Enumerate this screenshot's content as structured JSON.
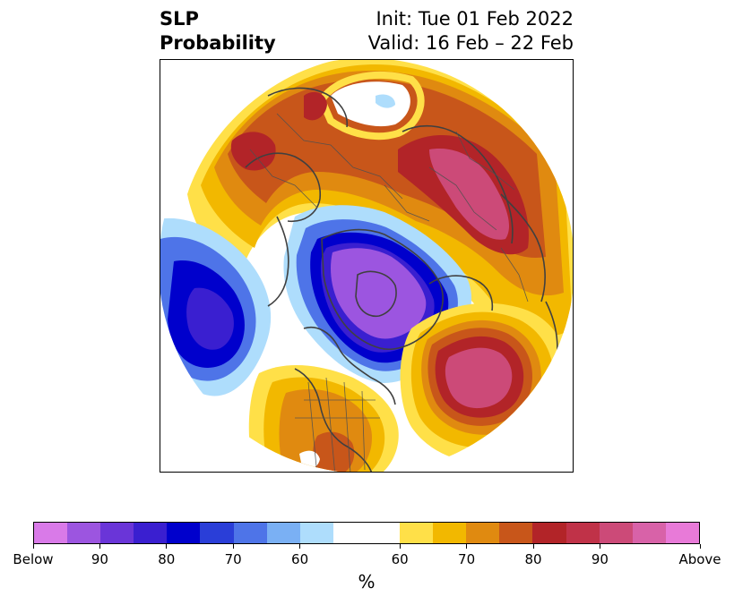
{
  "title": {
    "left_line1": "SLP",
    "left_line2": "Probability",
    "right_line1": "Init: Tue 01 Feb 2022",
    "right_line2": "Valid: 16 Feb – 22 Feb"
  },
  "colorbar": {
    "unit": "%",
    "labels": [
      "Below",
      "90",
      "80",
      "70",
      "60",
      "60",
      "70",
      "80",
      "90",
      "Above"
    ],
    "below_colors": [
      "#d97ae8",
      "#9c55e0",
      "#6a35d8",
      "#3a1fd0",
      "#0000cc",
      "#2a3ed8",
      "#4e74e8",
      "#7ab0f4",
      "#aeddfc"
    ],
    "above_colors": [
      "#ffe048",
      "#f2b800",
      "#e08a10",
      "#c8561a",
      "#b22428",
      "#c03248",
      "#cc4a78",
      "#d862a8",
      "#e87ad8"
    ]
  },
  "map": {
    "projection": "north-polar-stereographic",
    "colors": {
      "blue_light": "#aeddfc",
      "blue_mid": "#4e74e8",
      "blue_deep": "#0000cc",
      "purple": "#9c55e0",
      "yellow": "#ffe048",
      "gold": "#f2b800",
      "orange": "#e08a10",
      "dark_orange": "#c8561a",
      "red": "#b22428",
      "pink": "#cc4a78"
    }
  }
}
